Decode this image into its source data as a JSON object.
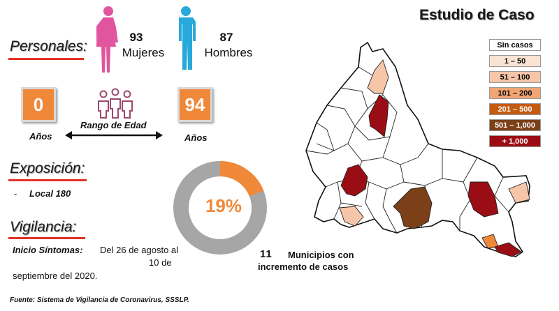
{
  "title": "Estudio de Caso",
  "personales": {
    "label": "Personales:",
    "women": {
      "count": "93",
      "label": "Mujeres",
      "color": "#e0559d"
    },
    "men": {
      "count": "87",
      "label": "Hombres",
      "color": "#28a9db"
    }
  },
  "age": {
    "min": "0",
    "max": "94",
    "min_unit": "Años",
    "max_unit": "Años",
    "range_label": "Rango de Edad"
  },
  "exposicion": {
    "label": "Exposición:",
    "bullet": "-",
    "item": "Local 180"
  },
  "donut": {
    "percent_text": "19%",
    "fraction": 0.19,
    "accent": "#f0883a",
    "rest": "#a6a6a6"
  },
  "vigilancia": {
    "label": "Vigilancia:",
    "inicio_label": "Inicio Síntomas:",
    "line1": "Del 26 de agosto al",
    "line2": "10 de",
    "line3": "septiembre del 2020."
  },
  "municipios": {
    "count": "11",
    "text1": "Municipios con",
    "text2": "incremento de casos"
  },
  "legend": [
    {
      "label": "Sin casos",
      "color": "#ffffff",
      "text_color": "#000000"
    },
    {
      "label": "1 – 50",
      "color": "#fbe3d4",
      "text_color": "#000000"
    },
    {
      "label": "51 – 100",
      "color": "#f7c6a8",
      "text_color": "#000000"
    },
    {
      "label": "101 – 200",
      "color": "#f0a574",
      "text_color": "#000000"
    },
    {
      "label": "201 – 500",
      "color": "#c55a11",
      "text_color": "#ffffff"
    },
    {
      "label": "501 – 1,000",
      "color": "#7b4018",
      "text_color": "#ffffff"
    },
    {
      "label": "+ 1,000",
      "color": "#9b0d14",
      "text_color": "#ffffff"
    }
  ],
  "source": "Fuente: Sistema de Vigilancia de Coronavirus, SSSLP."
}
